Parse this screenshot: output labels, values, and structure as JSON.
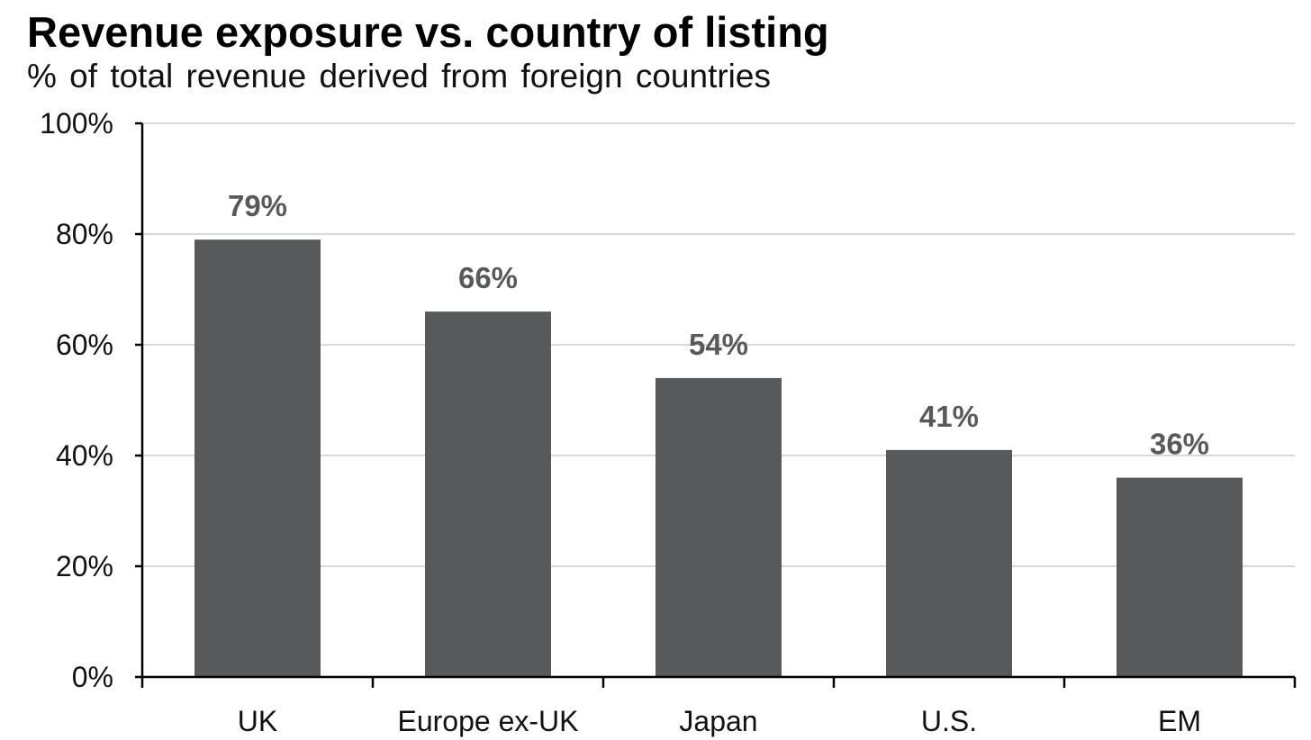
{
  "chart_data": {
    "type": "bar",
    "title": "Revenue exposure vs. country of listing",
    "subtitle": "% of total revenue  derived  from  foreign  countries",
    "categories": [
      "UK",
      "Europe ex-UK",
      "Japan",
      "U.S.",
      "EM"
    ],
    "values": [
      79,
      66,
      54,
      41,
      36
    ],
    "data_labels": [
      "79%",
      "66%",
      "54%",
      "41%",
      "36%"
    ],
    "ylim": [
      0,
      100
    ],
    "yticks": [
      0,
      20,
      40,
      60,
      80,
      100
    ],
    "ytick_labels": [
      "0%",
      "20%",
      "40%",
      "60%",
      "80%",
      "100%"
    ],
    "xlabel": "",
    "ylabel": "",
    "grid": true,
    "bar_color": "#58595b",
    "data_label_color": "#58595b",
    "grid_color": "#d9d9d9",
    "axis_color": "#000000"
  }
}
